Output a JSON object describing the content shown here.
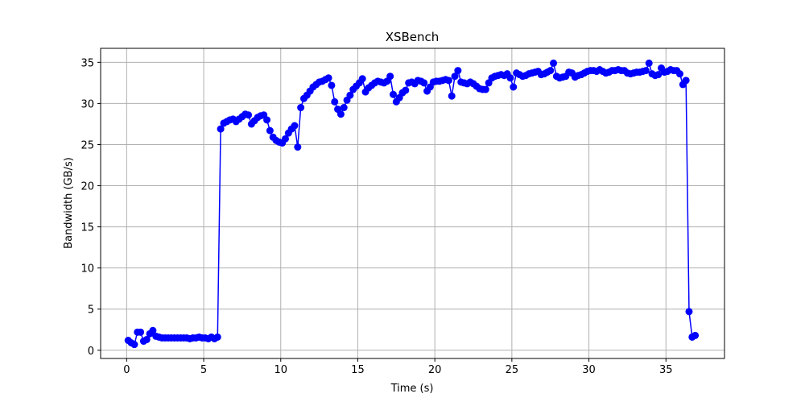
{
  "chart_data": {
    "type": "line",
    "title": "XSBench",
    "xlabel": "Time (s)",
    "ylabel": "Bandwidth (GB/s)",
    "x": [
      0.1,
      0.3,
      0.5,
      0.7,
      0.9,
      1.1,
      1.3,
      1.5,
      1.7,
      1.9,
      2.1,
      2.3,
      2.5,
      2.7,
      2.9,
      3.1,
      3.3,
      3.5,
      3.7,
      3.9,
      4.1,
      4.3,
      4.5,
      4.7,
      4.9,
      5.1,
      5.3,
      5.5,
      5.7,
      5.9,
      6.1,
      6.3,
      6.5,
      6.7,
      6.9,
      7.1,
      7.3,
      7.5,
      7.7,
      7.9,
      8.1,
      8.3,
      8.5,
      8.7,
      8.9,
      9.1,
      9.3,
      9.5,
      9.7,
      9.9,
      10.1,
      10.3,
      10.5,
      10.7,
      10.9,
      11.1,
      11.3,
      11.5,
      11.7,
      11.9,
      12.1,
      12.3,
      12.5,
      12.7,
      12.9,
      13.1,
      13.3,
      13.5,
      13.7,
      13.9,
      14.1,
      14.3,
      14.5,
      14.7,
      14.9,
      15.1,
      15.3,
      15.5,
      15.7,
      15.9,
      16.1,
      16.3,
      16.5,
      16.7,
      16.9,
      17.1,
      17.3,
      17.5,
      17.7,
      17.9,
      18.1,
      18.3,
      18.5,
      18.7,
      18.9,
      19.1,
      19.3,
      19.5,
      19.7,
      19.9,
      20.1,
      20.3,
      20.5,
      20.7,
      20.9,
      21.1,
      21.3,
      21.5,
      21.7,
      21.9,
      22.1,
      22.3,
      22.5,
      22.7,
      22.9,
      23.1,
      23.3,
      23.5,
      23.7,
      23.9,
      24.1,
      24.3,
      24.5,
      24.7,
      24.9,
      25.1,
      25.3,
      25.5,
      25.7,
      25.9,
      26.1,
      26.3,
      26.5,
      26.7,
      26.9,
      27.1,
      27.3,
      27.5,
      27.7,
      27.9,
      28.1,
      28.3,
      28.5,
      28.7,
      28.9,
      29.1,
      29.3,
      29.5,
      29.7,
      29.9,
      30.1,
      30.3,
      30.5,
      30.7,
      30.9,
      31.1,
      31.3,
      31.5,
      31.7,
      31.9,
      32.1,
      32.3,
      32.5,
      32.7,
      32.9,
      33.1,
      33.3,
      33.5,
      33.7,
      33.9,
      34.1,
      34.3,
      34.5,
      34.7,
      34.9,
      35.1,
      35.3,
      35.5,
      35.7,
      35.9,
      36.1,
      36.3,
      36.5,
      36.7,
      36.9
    ],
    "series": [
      {
        "name": "Bandwidth",
        "color": "#0000ff",
        "values": [
          1.2,
          0.9,
          0.7,
          2.2,
          2.2,
          1.1,
          1.3,
          2.0,
          2.4,
          1.7,
          1.6,
          1.5,
          1.5,
          1.5,
          1.5,
          1.5,
          1.5,
          1.5,
          1.5,
          1.5,
          1.4,
          1.5,
          1.5,
          1.6,
          1.5,
          1.5,
          1.4,
          1.6,
          1.4,
          1.6,
          26.9,
          27.6,
          27.8,
          28.0,
          28.1,
          27.8,
          28.1,
          28.4,
          28.7,
          28.6,
          27.5,
          27.9,
          28.3,
          28.5,
          28.6,
          28.0,
          26.7,
          25.9,
          25.5,
          25.3,
          25.2,
          25.7,
          26.4,
          26.9,
          27.3,
          24.7,
          29.5,
          30.6,
          31.0,
          31.5,
          32.0,
          32.3,
          32.6,
          32.7,
          32.9,
          33.1,
          32.2,
          30.2,
          29.3,
          28.7,
          29.5,
          30.4,
          31.0,
          31.7,
          32.1,
          32.5,
          33.0,
          31.4,
          31.9,
          32.2,
          32.5,
          32.7,
          32.6,
          32.5,
          32.7,
          33.3,
          31.1,
          30.2,
          30.7,
          31.3,
          31.6,
          32.5,
          32.6,
          32.4,
          32.8,
          32.7,
          32.5,
          31.5,
          32.0,
          32.6,
          32.7,
          32.7,
          32.8,
          32.9,
          32.8,
          30.9,
          33.3,
          34.0,
          32.6,
          32.5,
          32.4,
          32.6,
          32.4,
          32.1,
          31.8,
          31.7,
          31.7,
          32.5,
          33.1,
          33.3,
          33.4,
          33.5,
          33.4,
          33.6,
          33.1,
          32.0,
          33.7,
          33.5,
          33.3,
          33.4,
          33.6,
          33.7,
          33.8,
          33.9,
          33.5,
          33.6,
          33.8,
          34.0,
          34.9,
          33.3,
          33.1,
          33.2,
          33.3,
          33.8,
          33.7,
          33.2,
          33.4,
          33.5,
          33.7,
          33.9,
          34.0,
          34.0,
          33.9,
          34.1,
          33.9,
          33.7,
          33.8,
          34.0,
          34.0,
          34.1,
          34.0,
          34.0,
          33.7,
          33.6,
          33.7,
          33.8,
          33.8,
          33.9,
          34.0,
          34.9,
          33.6,
          33.4,
          33.5,
          34.3,
          33.8,
          33.9,
          34.1,
          34.0,
          34.0,
          33.6,
          32.3,
          32.8,
          4.7,
          1.6,
          1.8
        ]
      }
    ],
    "xlim": [
      -1.69,
      38.8
    ],
    "ylim": [
      -1.0,
      36.7
    ],
    "xticks": [
      0,
      5,
      10,
      15,
      20,
      25,
      30,
      35
    ],
    "yticks": [
      0,
      5,
      10,
      15,
      20,
      25,
      30,
      35
    ],
    "grid": true
  }
}
